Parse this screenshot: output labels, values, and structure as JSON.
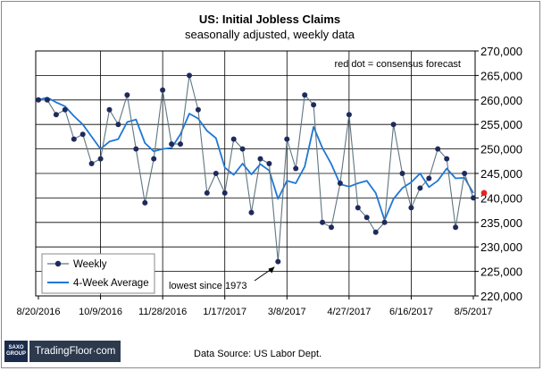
{
  "chart_data": {
    "type": "line",
    "title": "US: Initial Jobless Claims",
    "subtitle": "seasonally adjusted, weekly data",
    "xlabel": "",
    "ylabel": "",
    "ylim": [
      220000,
      270000
    ],
    "y_ticks": [
      "220,000",
      "225,000",
      "230,000",
      "235,000",
      "240,000",
      "245,000",
      "250,000",
      "255,000",
      "260,000",
      "265,000",
      "270,000"
    ],
    "x_tick_labels": [
      "8/20/2016",
      "10/9/2016",
      "11/28/2016",
      "1/17/2017",
      "3/8/2017",
      "4/27/2017",
      "6/16/2017",
      "8/5/2017"
    ],
    "grid": true,
    "legend_position": "bottom-left",
    "series": [
      {
        "name": "Weekly",
        "color": "#1f2a5c",
        "marker": "circle",
        "values": [
          260000,
          260000,
          257000,
          258000,
          252000,
          253000,
          247000,
          248000,
          258000,
          255000,
          261000,
          250000,
          239000,
          248000,
          262000,
          251000,
          251000,
          265000,
          258000,
          241000,
          245000,
          241000,
          252000,
          250000,
          237000,
          248000,
          247000,
          227000,
          252000,
          246000,
          261000,
          259000,
          235000,
          234000,
          243000,
          257000,
          238000,
          236000,
          233000,
          235000,
          255000,
          245000,
          238000,
          242000,
          244000,
          250000,
          248000,
          234000,
          245000,
          240000
        ]
      },
      {
        "name": "4-Week Average",
        "color": "#1f77d4",
        "values": [
          260000,
          260500,
          259500,
          258700,
          256700,
          255000,
          252500,
          250000,
          251500,
          252000,
          255500,
          256000,
          251200,
          249500,
          250000,
          250200,
          253000,
          257200,
          256200,
          253700,
          252200,
          246200,
          244700,
          247000,
          244800,
          246900,
          245600,
          239800,
          243500,
          243000,
          246400,
          254500,
          250200,
          246900,
          242800,
          242300,
          243000,
          243500,
          241000,
          235500,
          239800,
          242000,
          243200,
          245000,
          242200,
          243500,
          246000,
          244000,
          244100,
          241000
        ]
      },
      {
        "name": "red dot = consensus forecast",
        "color": "#e8221c",
        "values": [
          241000
        ]
      }
    ],
    "annotations": [
      {
        "text": "red dot = consensus forecast"
      },
      {
        "text": "lowest since 1973"
      }
    ]
  },
  "legend": {
    "weekly_label": "Weekly",
    "avg_label": "4-Week Average"
  },
  "footer": {
    "source": "Data Source: US Labor Dept.",
    "saxo_line1": "SAXO",
    "saxo_line2": "GROUP",
    "brand": "TradingFloor·com"
  },
  "colors": {
    "weekly_line": "#5f7680",
    "weekly_marker": "#1f2a5c",
    "average": "#1f77d4",
    "forecast": "#e8221c",
    "grid": "#000000"
  }
}
